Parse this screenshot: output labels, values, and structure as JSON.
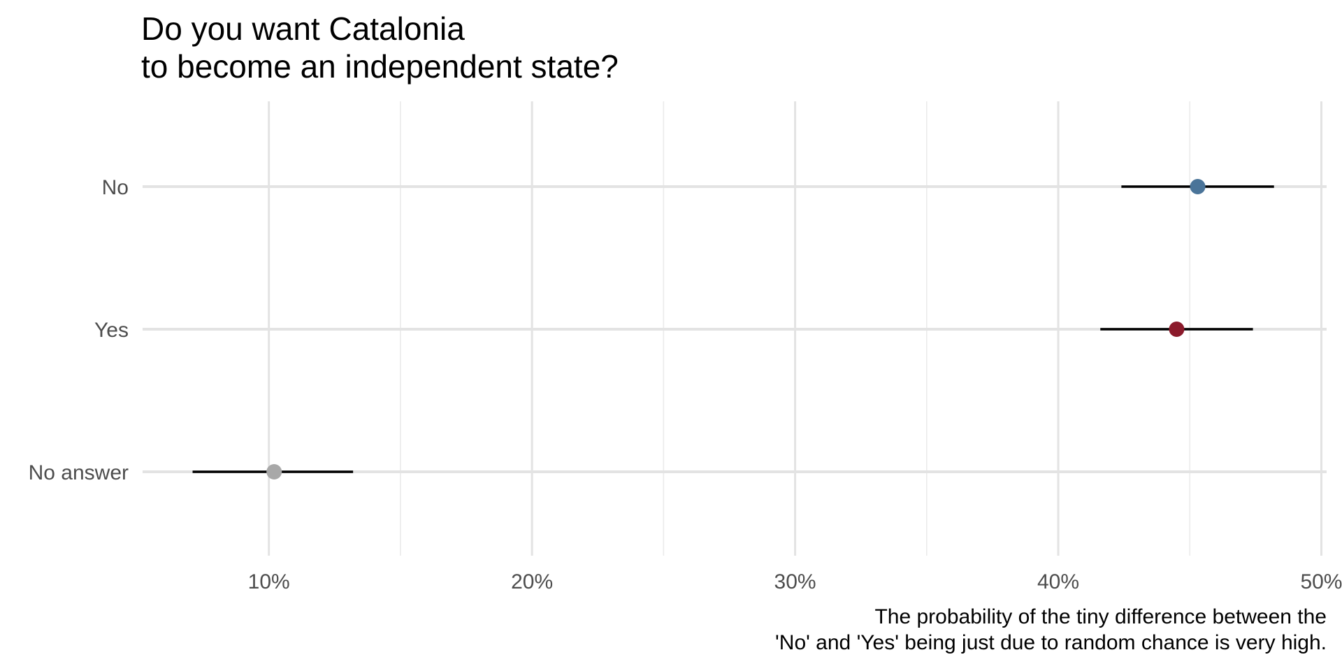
{
  "chart_data": {
    "type": "scatter",
    "title": [
      "Do you want Catalonia",
      "to become an independent state?"
    ],
    "caption": [
      "The probability of the tiny difference between the",
      "'No' and 'Yes' being just due to random chance is very high."
    ],
    "xlabel": "",
    "ylabel": "",
    "x_range": [
      5.2,
      50.2
    ],
    "x_ticks": [
      10,
      20,
      30,
      40,
      50
    ],
    "x_tick_labels": [
      "10%",
      "20%",
      "30%",
      "40%",
      "50%"
    ],
    "x_minor_ticks": [
      15,
      25,
      35,
      45
    ],
    "categories": [
      "No",
      "Yes",
      "No answer"
    ],
    "points": [
      {
        "category": "No",
        "value": 45.3,
        "ci_low": 42.4,
        "ci_high": 48.2,
        "color": "#4a7499"
      },
      {
        "category": "Yes",
        "value": 44.5,
        "ci_low": 41.6,
        "ci_high": 47.4,
        "color": "#8b1a2b"
      },
      {
        "category": "No answer",
        "value": 10.2,
        "ci_low": 7.1,
        "ci_high": 13.2,
        "color": "#a8a8a8"
      }
    ],
    "grid": true,
    "legend": "none"
  }
}
